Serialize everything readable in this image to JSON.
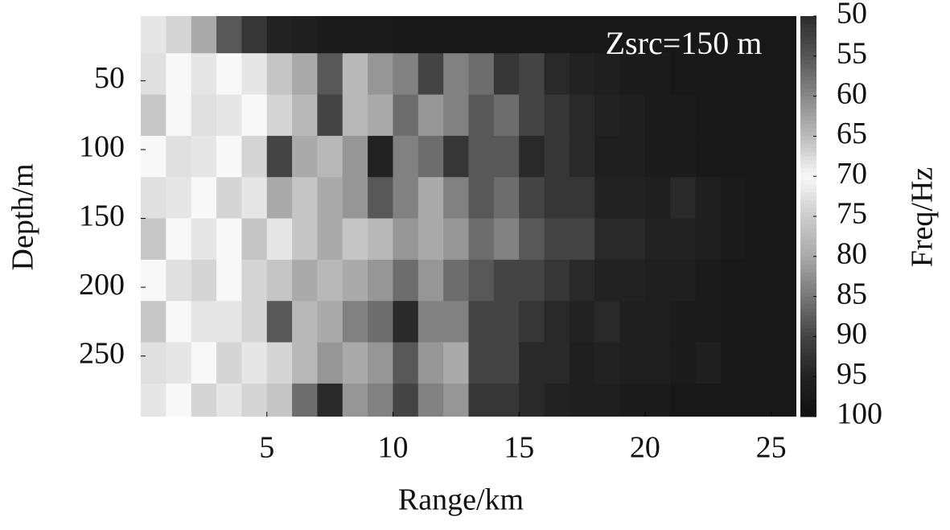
{
  "chart_data": {
    "type": "heatmap",
    "annotation": "Zsrc=150 m",
    "x_label": "Range/km",
    "y_label": "Depth/m",
    "colorbar_label": "Freq/Hz",
    "x": [
      0.5,
      1.5,
      2.5,
      3.5,
      4.5,
      5.5,
      6.5,
      7.5,
      8.5,
      9.5,
      10.5,
      11.5,
      12.5,
      13.5,
      14.5,
      15.5,
      16.5,
      17.5,
      18.5,
      19.5,
      20.5,
      21.5,
      22.5,
      23.5,
      24.5,
      25.5
    ],
    "y": [
      15,
      45,
      75,
      105,
      135,
      165,
      195,
      225,
      255,
      285
    ],
    "z": [
      [
        72,
        74,
        80,
        88,
        92,
        95,
        96,
        97,
        97,
        97,
        98,
        98,
        98,
        98,
        98,
        98,
        98,
        98,
        98,
        98,
        98,
        98,
        98,
        98,
        98,
        98
      ],
      [
        68,
        70,
        72,
        70,
        72,
        76,
        80,
        88,
        78,
        82,
        84,
        90,
        84,
        86,
        92,
        90,
        94,
        95,
        96,
        97,
        97,
        98,
        98,
        98,
        98,
        98
      ],
      [
        66,
        70,
        68,
        72,
        70,
        74,
        78,
        90,
        78,
        80,
        86,
        82,
        84,
        88,
        86,
        90,
        92,
        94,
        95,
        96,
        97,
        97,
        98,
        98,
        98,
        98
      ],
      [
        70,
        68,
        72,
        70,
        74,
        90,
        80,
        78,
        82,
        95,
        84,
        86,
        92,
        88,
        88,
        94,
        92,
        94,
        96,
        96,
        97,
        97,
        98,
        98,
        98,
        98
      ],
      [
        68,
        72,
        70,
        74,
        72,
        80,
        76,
        80,
        82,
        88,
        84,
        80,
        84,
        88,
        86,
        90,
        92,
        92,
        95,
        95,
        96,
        94,
        96,
        97,
        98,
        98
      ],
      [
        66,
        70,
        72,
        70,
        76,
        72,
        76,
        80,
        76,
        78,
        82,
        80,
        82,
        86,
        84,
        88,
        90,
        90,
        94,
        94,
        95,
        95,
        96,
        97,
        98,
        98
      ],
      [
        70,
        68,
        74,
        70,
        74,
        76,
        80,
        78,
        80,
        82,
        86,
        82,
        86,
        88,
        90,
        90,
        92,
        94,
        95,
        95,
        96,
        96,
        97,
        98,
        98,
        98
      ],
      [
        66,
        70,
        72,
        72,
        74,
        88,
        78,
        80,
        84,
        86,
        94,
        84,
        84,
        90,
        90,
        92,
        94,
        95,
        94,
        96,
        96,
        97,
        97,
        98,
        98,
        98
      ],
      [
        68,
        72,
        70,
        74,
        72,
        74,
        78,
        82,
        80,
        82,
        88,
        82,
        80,
        90,
        90,
        94,
        94,
        96,
        95,
        96,
        96,
        97,
        96,
        98,
        98,
        98
      ],
      [
        72,
        70,
        74,
        72,
        74,
        76,
        86,
        94,
        82,
        84,
        90,
        84,
        82,
        92,
        92,
        94,
        95,
        96,
        96,
        97,
        97,
        98,
        98,
        98,
        98,
        98
      ]
    ],
    "xlim": [
      0,
      26
    ],
    "ylim": [
      3,
      294
    ],
    "y_inverted": true,
    "xticks": [
      5,
      10,
      15,
      20,
      25
    ],
    "yticks": [
      50,
      100,
      150,
      200,
      250
    ],
    "clim": [
      50,
      100
    ],
    "cticks": [
      50,
      55,
      60,
      65,
      70,
      75,
      80,
      85,
      90,
      95,
      100
    ],
    "colormap": [
      "#2b2b2b",
      "#555555",
      "#888888",
      "#bbbbbb",
      "#f8f8f8",
      "#cccccc",
      "#aaaaaa",
      "#777777",
      "#444444",
      "#222222",
      "#111111"
    ]
  }
}
